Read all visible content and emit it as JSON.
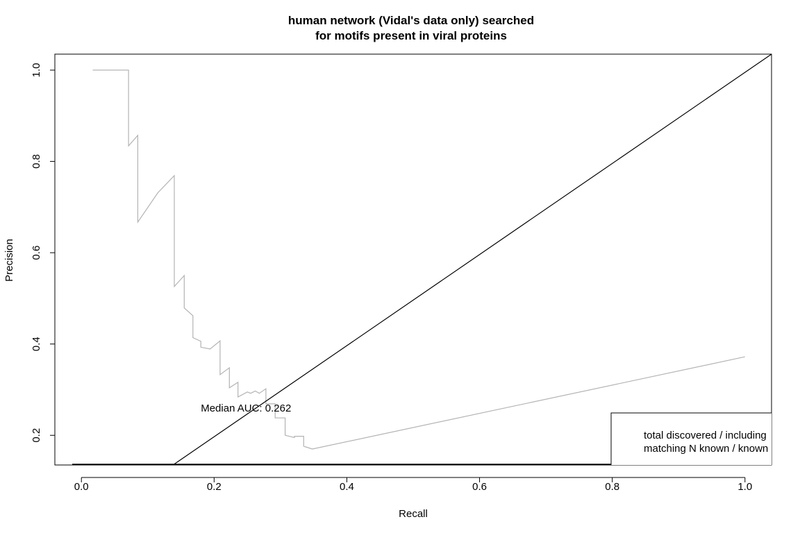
{
  "chart_data": {
    "type": "line",
    "title_line1": "human network (Vidal's data only) searched",
    "title_line2": "for motifs present in viral proteins",
    "xlabel": "Recall",
    "ylabel": "Precision",
    "xlim": [
      -0.04,
      1.04
    ],
    "ylim": [
      0.135,
      1.035
    ],
    "x_ticks": [
      0.0,
      0.2,
      0.4,
      0.6,
      0.8,
      1.0
    ],
    "x_tick_labels": [
      "0.0",
      "0.2",
      "0.4",
      "0.6",
      "0.8",
      "1.0"
    ],
    "y_ticks": [
      0.2,
      0.4,
      0.6,
      0.8,
      1.0
    ],
    "y_tick_labels": [
      "0.2",
      "0.4",
      "0.6",
      "0.8",
      "1.0"
    ],
    "grid": false,
    "annotation": {
      "text": "Median AUC: 0.262",
      "x": 0.18,
      "y": 0.26
    },
    "legend": {
      "position": "bottom-right",
      "lines": [
        "total discovered / including",
        "matching N known / known"
      ]
    },
    "colors": {
      "pr_curve": "#b3b3b3",
      "reference": "#000000"
    },
    "series": [
      {
        "values_x": [
          0.017,
          0.071,
          0.071,
          0.071,
          0.085,
          0.085,
          0.115,
          0.14,
          0.14,
          0.155,
          0.155,
          0.168,
          0.168,
          0.18,
          0.18,
          0.194,
          0.209,
          0.209,
          0.223,
          0.223,
          0.236,
          0.236,
          0.25,
          0.255,
          0.262,
          0.268,
          0.278,
          0.278,
          0.292,
          0.292,
          0.307,
          0.307,
          0.321,
          0.321,
          0.335,
          0.335,
          0.348,
          1.0
        ],
        "values_y": [
          1.0,
          1.0,
          0.834,
          0.834,
          0.857,
          0.667,
          0.731,
          0.769,
          0.526,
          0.55,
          0.479,
          0.462,
          0.414,
          0.406,
          0.393,
          0.389,
          0.407,
          0.333,
          0.348,
          0.304,
          0.316,
          0.284,
          0.295,
          0.292,
          0.297,
          0.292,
          0.302,
          0.269,
          0.269,
          0.238,
          0.238,
          0.2,
          0.195,
          0.198,
          0.198,
          0.176,
          0.17,
          0.372
        ]
      },
      {
        "values_x": [
          0.138,
          1.04
        ],
        "values_y": [
          0.135,
          1.035
        ]
      }
    ]
  }
}
